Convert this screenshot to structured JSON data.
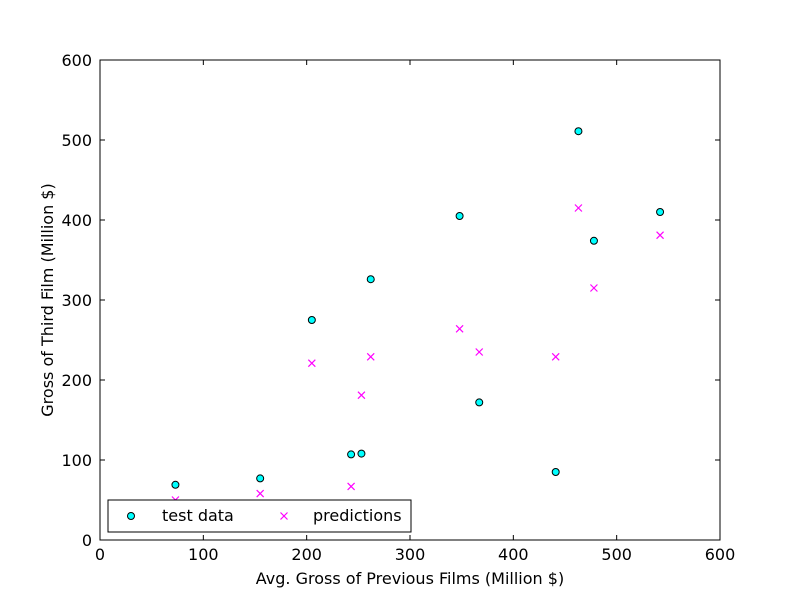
{
  "chart_data": {
    "type": "scatter",
    "xlabel": "Avg. Gross of Previous Films (Million $)",
    "ylabel": "Gross of Third Film (Million $)",
    "xlim": [
      0,
      600
    ],
    "ylim": [
      0,
      600
    ],
    "xticks": [
      "0",
      "100",
      "200",
      "300",
      "400",
      "500",
      "600"
    ],
    "yticks": [
      "0",
      "100",
      "200",
      "300",
      "400",
      "500",
      "600"
    ],
    "grid": false,
    "legend_position": "lower-left",
    "series": [
      {
        "name": "test data",
        "marker": "circle",
        "color": "#00ffff",
        "edge_color": "#000000",
        "points": [
          [
            73,
            69
          ],
          [
            155,
            77
          ],
          [
            205,
            275
          ],
          [
            243,
            107
          ],
          [
            253,
            108
          ],
          [
            262,
            326
          ],
          [
            348,
            405
          ],
          [
            367,
            172
          ],
          [
            441,
            85
          ],
          [
            463,
            511
          ],
          [
            478,
            374
          ],
          [
            542,
            410
          ]
        ]
      },
      {
        "name": "predictions",
        "marker": "x",
        "color": "#ff00ff",
        "points": [
          [
            73,
            50
          ],
          [
            155,
            58
          ],
          [
            205,
            221
          ],
          [
            243,
            67
          ],
          [
            253,
            181
          ],
          [
            262,
            229
          ],
          [
            348,
            264
          ],
          [
            367,
            235
          ],
          [
            441,
            229
          ],
          [
            463,
            415
          ],
          [
            478,
            315
          ],
          [
            542,
            381
          ]
        ]
      }
    ]
  }
}
